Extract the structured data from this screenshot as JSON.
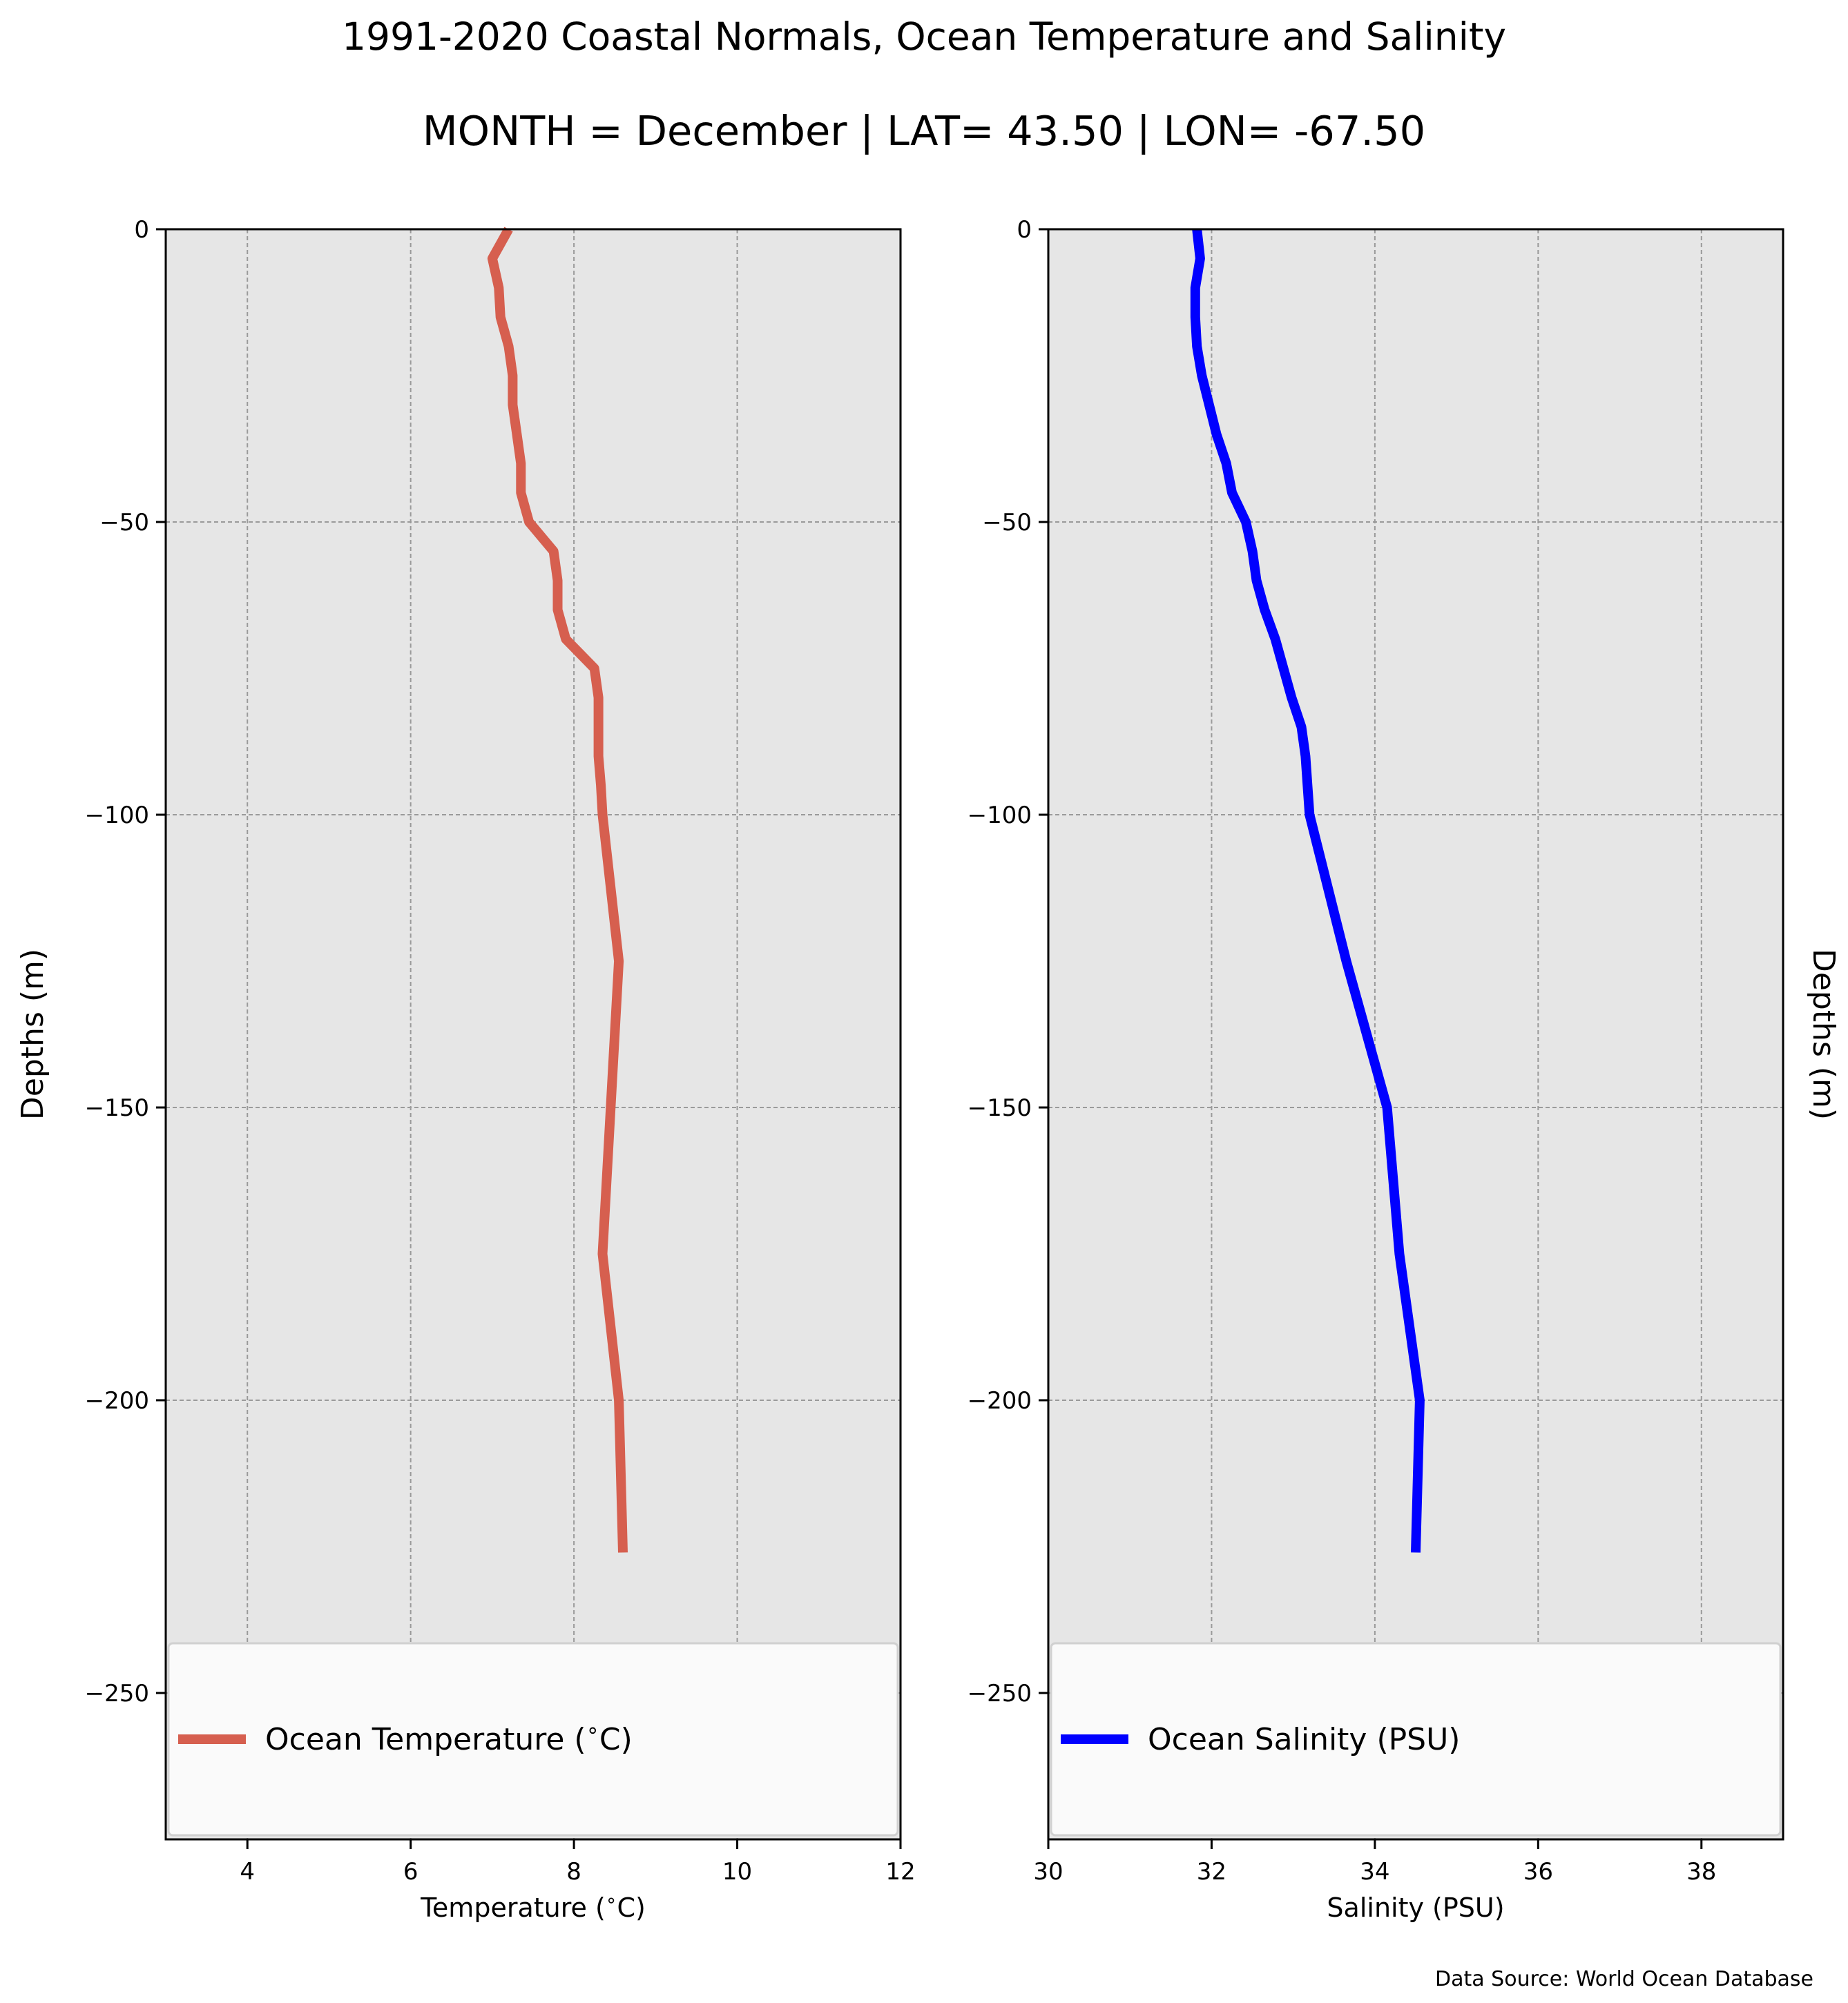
{
  "figure": {
    "title": "1991-2020 Coastal Normals, Ocean Temperature and Salinity",
    "subtitle": "MONTH = December | LAT= 43.50 | LON= -67.50",
    "source_note": "Data Source: World Ocean Database"
  },
  "colors": {
    "temperature_line": "#d65f4f",
    "salinity_line": "#0000ff",
    "plot_background": "#e6e6e6",
    "grid": "#9a9a9a"
  },
  "chart_data": [
    {
      "type": "line",
      "xlabel": "Temperature ($^\\circ$C)",
      "ylabel": "Depths (m)",
      "ylabel_position": "left",
      "xlim": [
        3,
        12
      ],
      "ylim": [
        -275,
        0
      ],
      "xticks": [
        4,
        6,
        8,
        10,
        12
      ],
      "xtick_labels": [
        "4",
        "6",
        "8",
        "10",
        "12"
      ],
      "yticks": [
        0,
        -50,
        -100,
        -150,
        -200,
        -250
      ],
      "ytick_labels": [
        "0",
        "−50",
        "−100",
        "−150",
        "−200",
        "−250"
      ],
      "grid": true,
      "legend_position": "bottom",
      "series": [
        {
          "name": "Ocean Temperature ($^\\circ$C)",
          "color": "#d65f4f",
          "x": [
            7.2,
            7.0,
            7.08,
            7.1,
            7.2,
            7.25,
            7.25,
            7.3,
            7.35,
            7.35,
            7.45,
            7.75,
            7.8,
            7.8,
            7.9,
            8.25,
            8.3,
            8.3,
            8.33,
            8.35,
            8.55,
            8.45,
            8.35,
            8.55,
            8.6
          ],
          "y": [
            0,
            -5,
            -10,
            -15,
            -20,
            -25,
            -30,
            -35,
            -40,
            -45,
            -50,
            -55,
            -60,
            -65,
            -70,
            -75,
            -80,
            -90,
            -95,
            -100,
            -125,
            -150,
            -175,
            -200,
            -226
          ]
        }
      ]
    },
    {
      "type": "line",
      "xlabel": "Salinity (PSU)",
      "ylabel": "Depths (m)",
      "ylabel_position": "right",
      "xlim": [
        30,
        39
      ],
      "ylim": [
        -275,
        0
      ],
      "xticks": [
        30,
        32,
        34,
        36,
        38
      ],
      "xtick_labels": [
        "30",
        "32",
        "34",
        "36",
        "38"
      ],
      "yticks": [
        0,
        -50,
        -100,
        -150,
        -200,
        -250
      ],
      "ytick_labels": [
        "0",
        "−50",
        "−100",
        "−150",
        "−200",
        "−250"
      ],
      "grid": true,
      "legend_position": "bottom",
      "series": [
        {
          "name": "Ocean Salinity (PSU)",
          "color": "#0000ff",
          "x": [
            31.82,
            31.86,
            31.8,
            31.8,
            31.82,
            31.88,
            31.97,
            32.06,
            32.18,
            32.25,
            32.42,
            32.5,
            32.55,
            32.65,
            32.78,
            32.98,
            33.1,
            33.15,
            33.2,
            33.65,
            34.15,
            34.3,
            34.55,
            34.5
          ],
          "y": [
            0,
            -5,
            -10,
            -15,
            -20,
            -25,
            -30,
            -35,
            -40,
            -45,
            -50,
            -55,
            -60,
            -65,
            -70,
            -80,
            -85,
            -90,
            -100,
            -125,
            -150,
            -175,
            -200,
            -226
          ]
        }
      ]
    }
  ]
}
